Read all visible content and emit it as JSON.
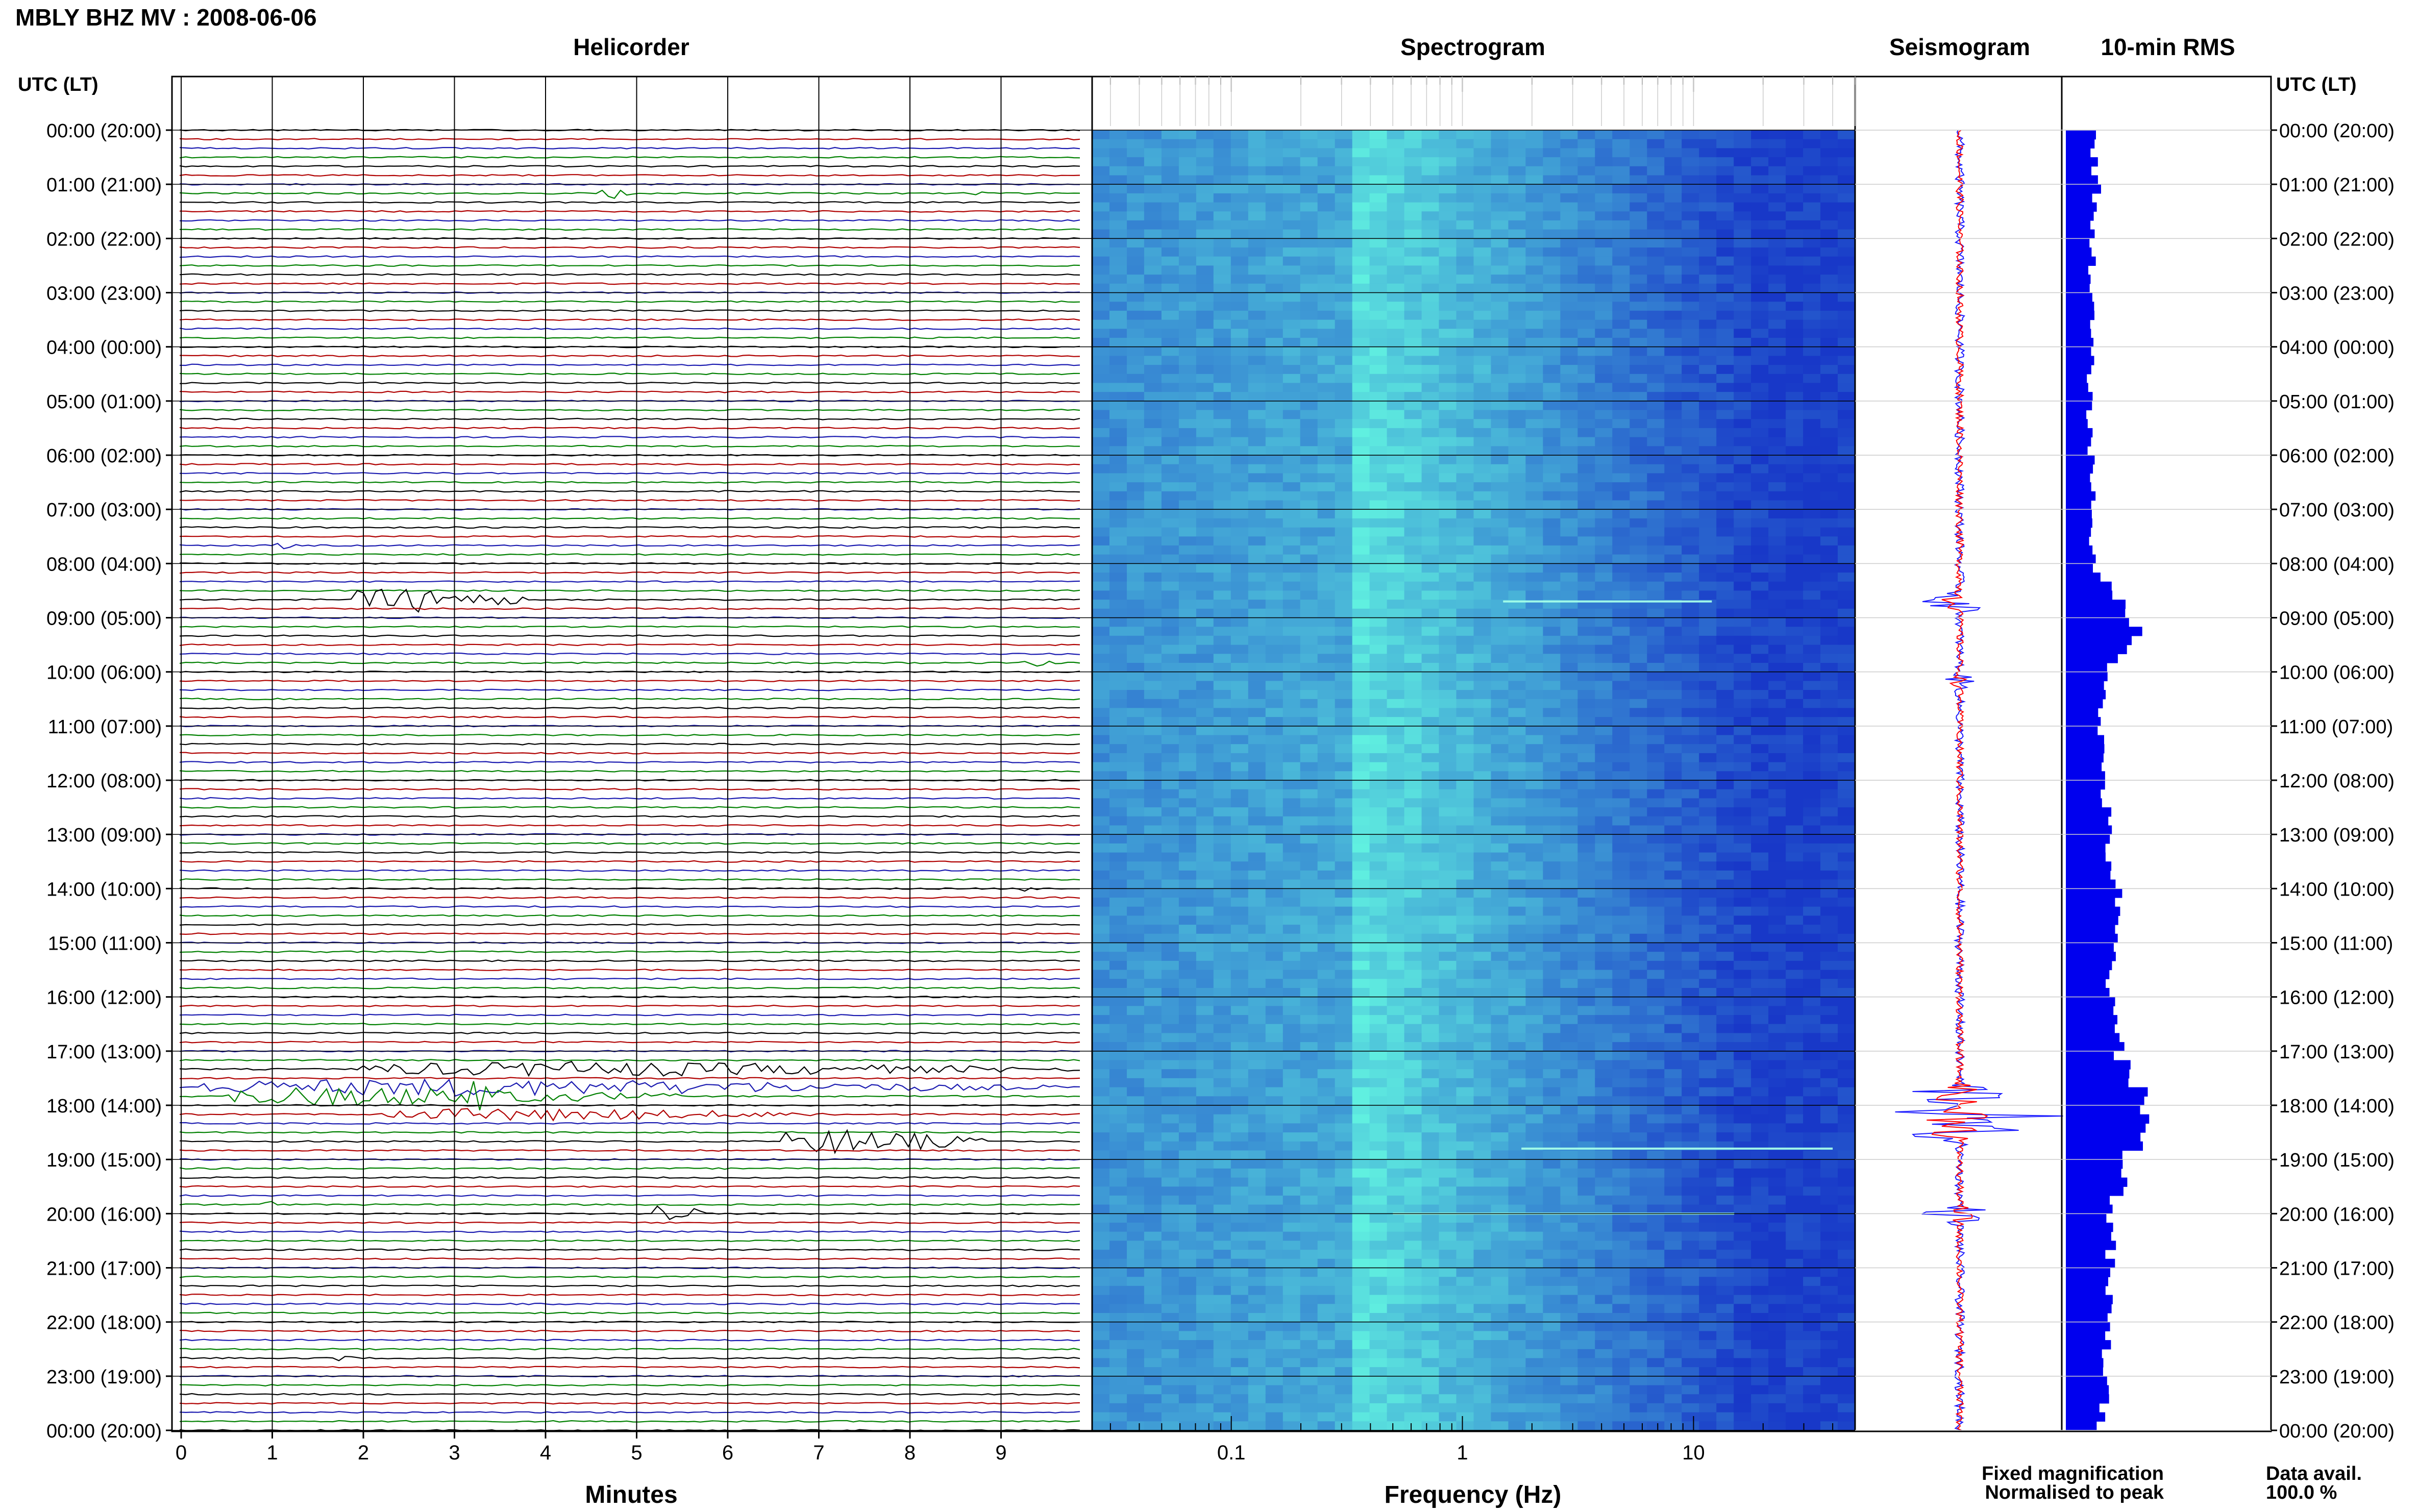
{
  "header": {
    "station_title": "MBLY BHZ MV : 2008-06-06",
    "time_axis_label": "UTC (LT)"
  },
  "panels": {
    "helicorder": "Helicorder",
    "spectrogram": "Spectrogram",
    "seismogram": "Seismogram",
    "rms": "10-min RMS"
  },
  "legend": {
    "fixed": "Fixed magnification",
    "normalised": "Normalised to peak",
    "fixed_color": "#1a1aff",
    "normalised_color": "#ff0000"
  },
  "data_availability": {
    "label": "Data avail.",
    "value": "100.0 %"
  },
  "colors": {
    "trace_cycle": [
      "#000000",
      "#b00000",
      "#1a1ab0",
      "#008000"
    ],
    "rms_bar": "#0000ee",
    "spectrogram_low": "#1838c8",
    "spectrogram_high": "#60f0e0"
  },
  "chart_data": [
    {
      "type": "line",
      "name": "helicorder",
      "title": "Helicorder",
      "xlabel": "Minutes",
      "xlim": [
        0,
        10
      ],
      "x_ticks": [
        "0",
        "1",
        "2",
        "3",
        "4",
        "5",
        "6",
        "7",
        "8",
        "9"
      ],
      "lines_per_hour": 6,
      "minutes_per_line": 10,
      "y_tick_labels": [
        "00:00 (20:00)",
        "01:00 (21:00)",
        "02:00 (22:00)",
        "03:00 (23:00)",
        "04:00 (00:00)",
        "05:00 (01:00)",
        "06:00 (02:00)",
        "07:00 (03:00)",
        "08:00 (04:00)",
        "09:00 (05:00)",
        "10:00 (06:00)",
        "11:00 (07:00)",
        "12:00 (08:00)",
        "13:00 (09:00)",
        "14:00 (10:00)",
        "15:00 (11:00)",
        "16:00 (12:00)",
        "17:00 (13:00)",
        "18:00 (14:00)",
        "19:00 (15:00)",
        "20:00 (16:00)",
        "21:00 (17:00)",
        "22:00 (18:00)",
        "23:00 (19:00)",
        "00:00 (20:00)"
      ],
      "events": [
        {
          "hour": 1.1,
          "minute": 4.6,
          "duration": 0.3,
          "amp": 0.6
        },
        {
          "hour": 1.1,
          "minute": 8.7,
          "duration": 0.2,
          "amp": 0.4
        },
        {
          "hour": 7.6,
          "minute": 1.0,
          "duration": 0.4,
          "amp": 0.3
        },
        {
          "hour": 8.6,
          "minute": 1.9,
          "duration": 1.9,
          "amp": 1.2
        },
        {
          "hour": 9.9,
          "minute": 9.2,
          "duration": 0.4,
          "amp": 0.4
        },
        {
          "hour": 14.0,
          "minute": 9.2,
          "duration": 0.2,
          "amp": 0.4
        },
        {
          "hour": 17.4,
          "minute": 2.0,
          "duration": 8.0,
          "amp": 0.7
        },
        {
          "hour": 17.6,
          "minute": 0.2,
          "duration": 9.4,
          "amp": 0.8
        },
        {
          "hour": 17.8,
          "minute": 0.5,
          "duration": 5.0,
          "amp": 0.9
        },
        {
          "hour": 17.9,
          "minute": 3.0,
          "duration": 0.6,
          "amp": 1.6
        },
        {
          "hour": 18.1,
          "minute": 2.2,
          "duration": 5.0,
          "amp": 0.6
        },
        {
          "hour": 18.6,
          "minute": 6.6,
          "duration": 2.2,
          "amp": 1.2
        },
        {
          "hour": 20.0,
          "minute": 5.2,
          "duration": 0.5,
          "amp": 1.3
        },
        {
          "hour": 19.9,
          "minute": 0.9,
          "duration": 0.2,
          "amp": 0.4
        },
        {
          "hour": 22.6,
          "minute": 1.6,
          "duration": 0.3,
          "amp": 0.4
        }
      ]
    },
    {
      "type": "heatmap",
      "name": "spectrogram",
      "title": "Spectrogram",
      "xlabel": "Frequency (Hz)",
      "x_scale": "log",
      "xlim": [
        0.025,
        50
      ],
      "x_ticks": [
        0.1,
        1,
        10
      ],
      "x_tick_labels": [
        "0.1",
        "1",
        "10"
      ],
      "time_range_hours": [
        0,
        24
      ],
      "peak_frequency_hz": 0.35,
      "narrowband_lines": [
        {
          "hour": 8.7,
          "f_from": 1.5,
          "f_to": 12
        },
        {
          "hour": 18.8,
          "f_from": 1.8,
          "f_to": 40
        },
        {
          "hour": 20.0,
          "f_from": 0.5,
          "f_to": 15
        }
      ]
    },
    {
      "type": "line",
      "name": "seismogram",
      "title": "Seismogram",
      "series": [
        {
          "name": "Fixed magnification",
          "color": "#1a1aff"
        },
        {
          "name": "Normalised to peak",
          "color": "#ff0000"
        }
      ],
      "bursts": [
        {
          "hour": 8.7,
          "amp": 0.6
        },
        {
          "hour": 10.2,
          "amp": 0.25
        },
        {
          "hour": 17.8,
          "amp": 1.0
        },
        {
          "hour": 18.2,
          "amp": 1.3
        },
        {
          "hour": 18.5,
          "amp": 0.9
        },
        {
          "hour": 20.0,
          "amp": 0.5
        }
      ]
    },
    {
      "type": "bar",
      "name": "rms",
      "title": "10-min RMS",
      "orientation": "horizontal",
      "bin_minutes": 10,
      "hourly_values": [
        0.32,
        0.36,
        0.31,
        0.3,
        0.29,
        0.27,
        0.3,
        0.32,
        0.3,
        0.85,
        0.5,
        0.4,
        0.45,
        0.48,
        0.58,
        0.55,
        0.5,
        0.65,
        0.98,
        0.72,
        0.52,
        0.5,
        0.48,
        0.46,
        0.4
      ]
    }
  ]
}
